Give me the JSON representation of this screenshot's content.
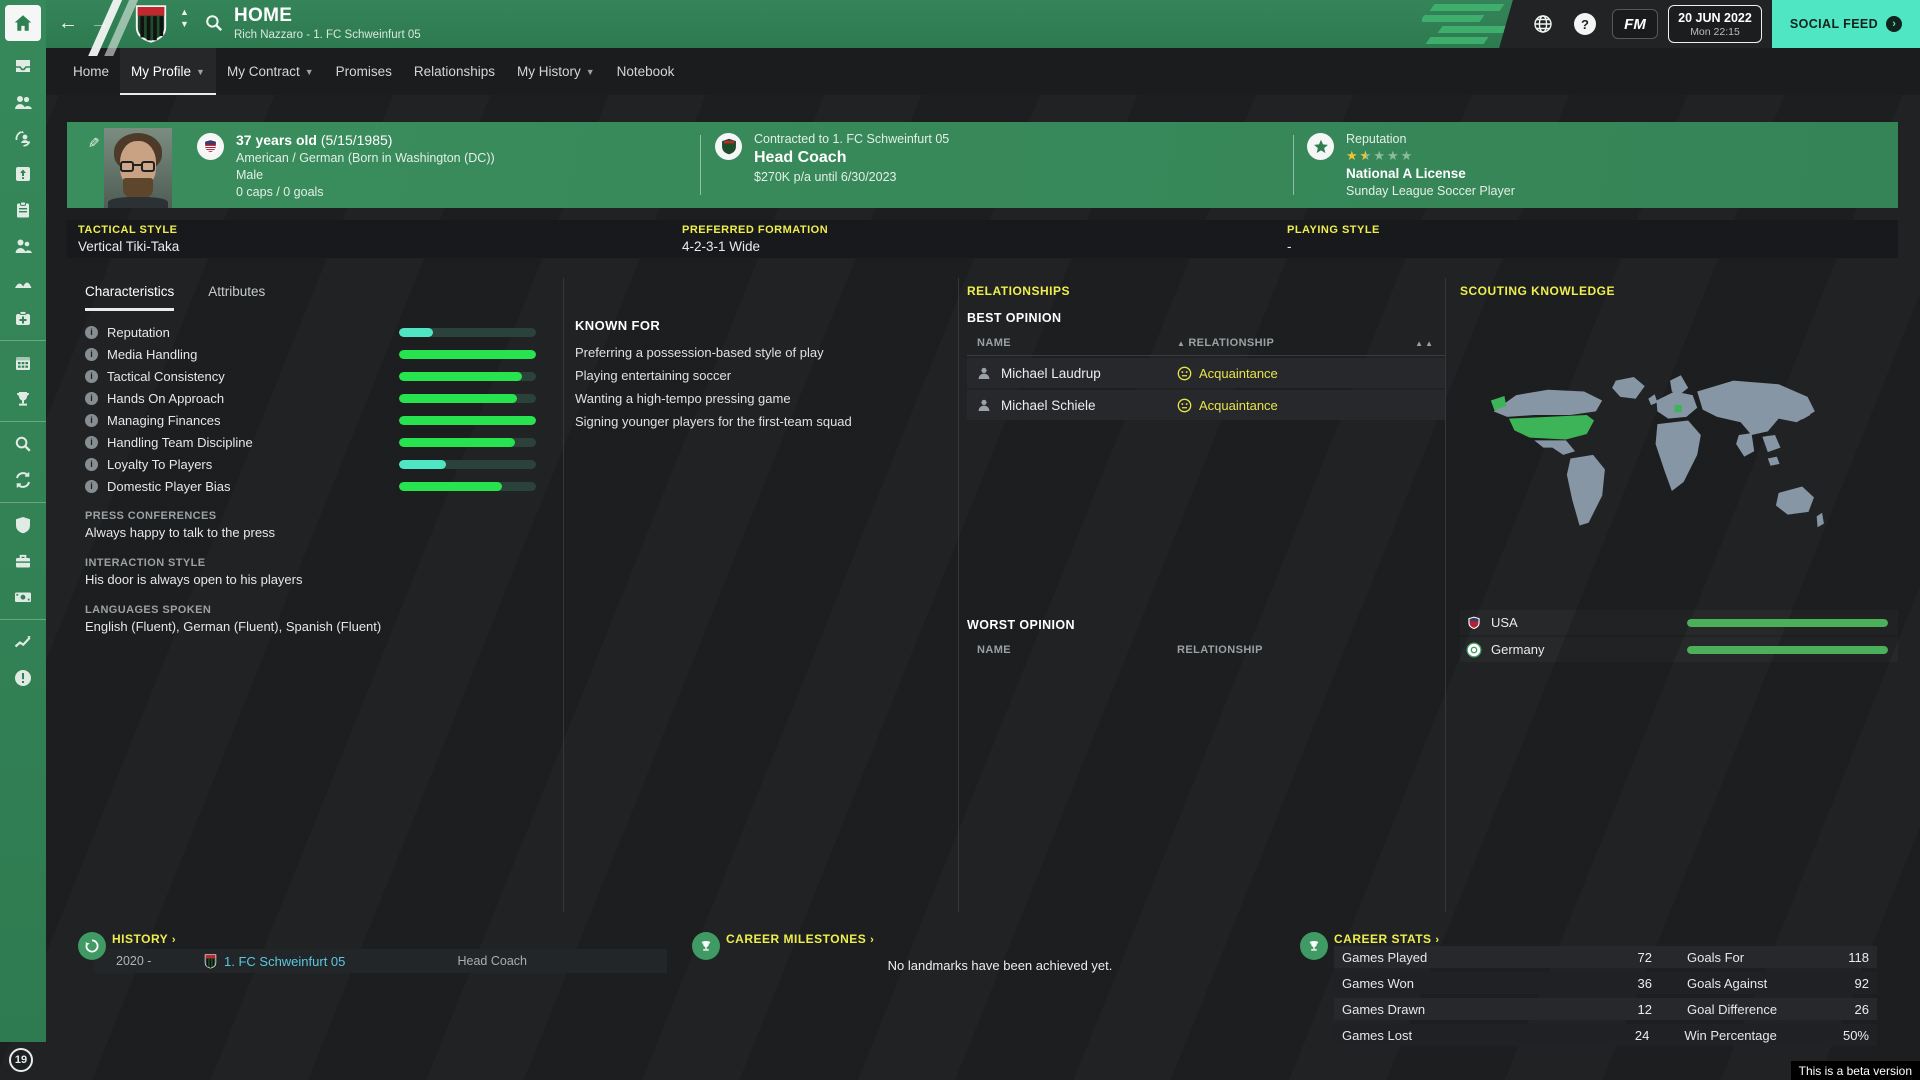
{
  "colors": {
    "accent_yellow": "#efee4e",
    "accent_mint": "#4fe6c3",
    "bar_green": "#27e34f",
    "bar_mint": "#4fe6c3",
    "scout_green": "#4cb05a",
    "link_cyan": "#5ac8e0",
    "header_green": "#37895a"
  },
  "titlebar": {
    "title": "HOME",
    "subtitle": "Rich Nazzaro - 1. FC Schweinfurt 05",
    "date": "20 JUN 2022",
    "time": "Mon 22:15",
    "fm": "FM",
    "social_feed": "SOCIAL FEED"
  },
  "nav": {
    "tabs": [
      {
        "label": "Home"
      },
      {
        "label": "My Profile",
        "dropdown": true,
        "active": true
      },
      {
        "label": "My Contract",
        "dropdown": true
      },
      {
        "label": "Promises"
      },
      {
        "label": "Relationships"
      },
      {
        "label": "My History",
        "dropdown": true
      },
      {
        "label": "Notebook"
      }
    ]
  },
  "profile": {
    "age": "37 years old",
    "birthdate": "(5/15/1985)",
    "nationality": "American / German (Born in Washington (DC))",
    "gender": "Male",
    "caps": "0 caps / 0 goals",
    "contracted": "Contracted to 1. FC Schweinfurt 05",
    "role": "Head Coach",
    "contract_terms": "$270K p/a until 6/30/2023",
    "reputation_label": "Reputation",
    "stars": 1.5,
    "stars_max": 5,
    "license": "National A License",
    "reputation_level": "Sunday League Soccer Player"
  },
  "style_strip": {
    "tactical_label": "TACTICAL STYLE",
    "tactical": "Vertical Tiki-Taka",
    "formation_label": "PREFERRED FORMATION",
    "formation": "4-2-3-1 Wide",
    "playing_label": "PLAYING STYLE",
    "playing": "-"
  },
  "characteristics": {
    "tab_characteristics": "Characteristics",
    "tab_attributes": "Attributes",
    "bars": [
      {
        "label": "Reputation",
        "value": 0.25
      },
      {
        "label": "Media Handling",
        "value": 1.0
      },
      {
        "label": "Tactical Consistency",
        "value": 0.9
      },
      {
        "label": "Hands On Approach",
        "value": 0.86
      },
      {
        "label": "Managing Finances",
        "value": 1.0
      },
      {
        "label": "Handling Team Discipline",
        "value": 0.85
      },
      {
        "label": "Loyalty To Players",
        "value": 0.34
      },
      {
        "label": "Domestic Player Bias",
        "value": 0.75
      }
    ],
    "press_label": "PRESS CONFERENCES",
    "press": "Always happy to talk to the press",
    "interaction_label": "INTERACTION STYLE",
    "interaction": "His door is always open to his players",
    "languages_label": "LANGUAGES SPOKEN",
    "languages": "English (Fluent), German (Fluent), Spanish (Fluent)"
  },
  "known_for": {
    "title": "KNOWN FOR",
    "items": [
      "Preferring a possession-based style of play",
      "Playing entertaining soccer",
      "Wanting a high-tempo pressing game",
      "Signing younger players for the first-team squad"
    ]
  },
  "relationships": {
    "title": "RELATIONSHIPS",
    "best_title": "BEST OPINION",
    "worst_title": "WORST OPINION",
    "col_name": "NAME",
    "col_relationship": "RELATIONSHIP",
    "best": [
      {
        "name": "Michael Laudrup",
        "status": "Acquaintance"
      },
      {
        "name": "Michael Schiele",
        "status": "Acquaintance"
      }
    ]
  },
  "scouting": {
    "title": "SCOUTING KNOWLEDGE",
    "rows": [
      {
        "country": "USA",
        "value": 1.0
      },
      {
        "country": "Germany",
        "value": 1.0
      }
    ]
  },
  "history": {
    "title": "HISTORY",
    "rows": [
      {
        "years": "2020 -",
        "club": "1. FC Schweinfurt 05",
        "role": "Head Coach"
      }
    ]
  },
  "milestones": {
    "title": "CAREER MILESTONES",
    "empty": "No landmarks have been achieved yet."
  },
  "career_stats": {
    "title": "CAREER STATS",
    "left": [
      {
        "label": "Games Played",
        "value": "72"
      },
      {
        "label": "Games Won",
        "value": "36"
      },
      {
        "label": "Games Drawn",
        "value": "12"
      },
      {
        "label": "Games Lost",
        "value": "24"
      }
    ],
    "right": [
      {
        "label": "Goals For",
        "value": "118"
      },
      {
        "label": "Goals Against",
        "value": "92"
      },
      {
        "label": "Goal Difference",
        "value": "26"
      },
      {
        "label": "Win Percentage",
        "value": "50%"
      }
    ]
  },
  "footer": {
    "beta": "This is a beta version",
    "sidebar_badge": "19"
  },
  "icons": {
    "sidebar": [
      "home",
      "inbox",
      "squad",
      "transfers",
      "training",
      "tactics",
      "staff",
      "dynamics",
      "medical",
      "schedule",
      "competitions",
      "scouting",
      "sync",
      "club",
      "job-center",
      "finances",
      "analytics",
      "alerts"
    ]
  }
}
